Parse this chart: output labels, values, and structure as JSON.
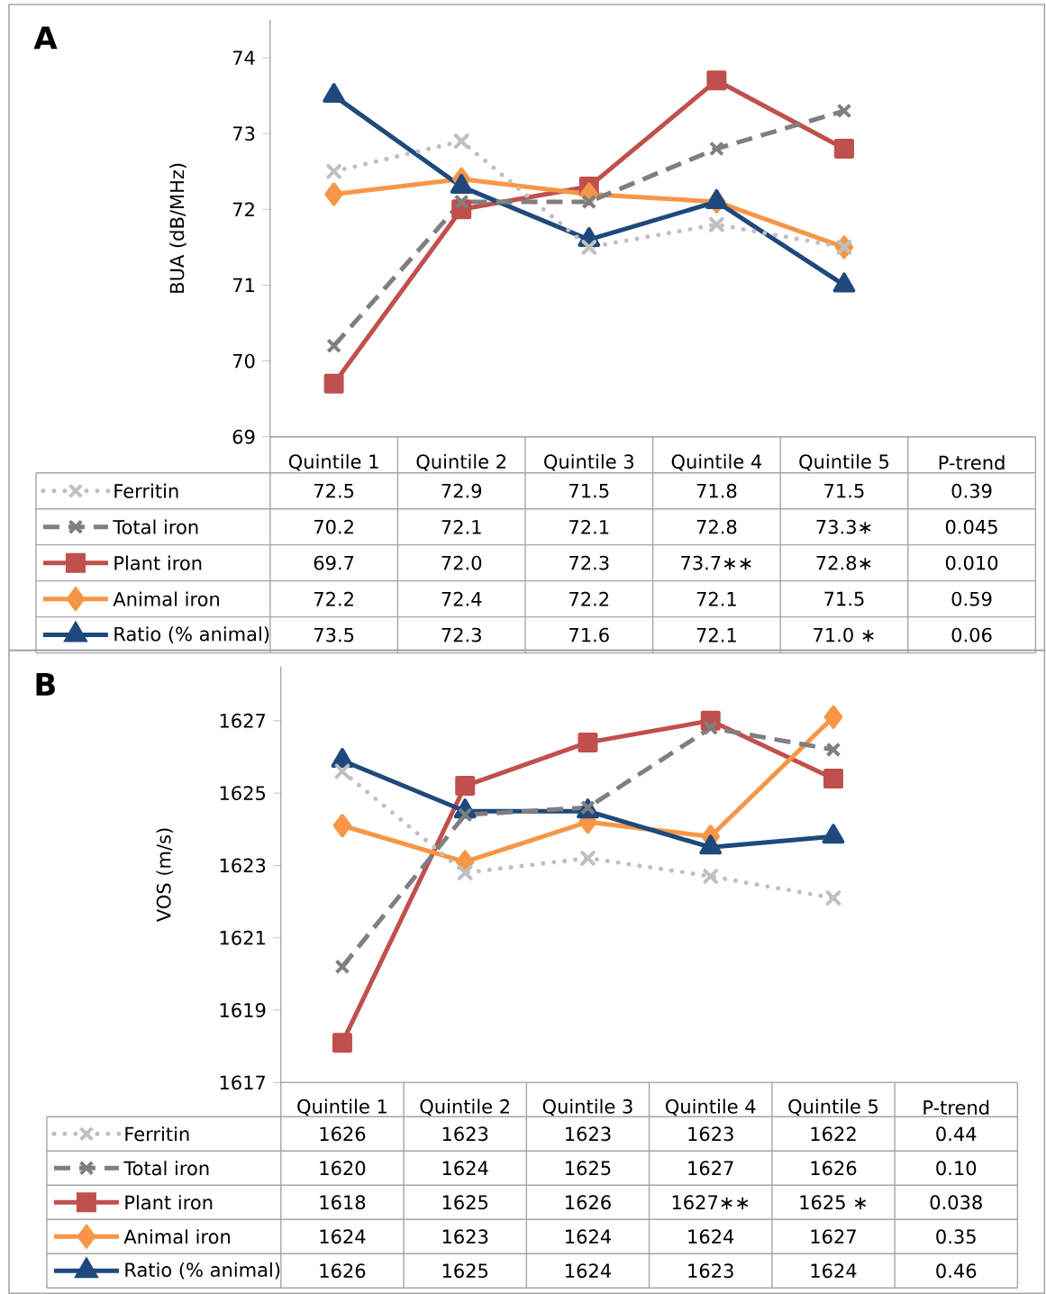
{
  "chart_data": [
    {
      "type": "line",
      "title": "A",
      "ylabel": "BUA (dB/MHz)",
      "categories": [
        "Quintile 1",
        "Quintile 2",
        "Quintile 3",
        "Quintile 4",
        "Quintile 5",
        "P-trend"
      ],
      "ylim": [
        69,
        74.5
      ],
      "yticks": [
        69,
        70,
        71,
        72,
        73,
        74
      ],
      "legend": "bottom",
      "series": [
        {
          "name": "Ferritin",
          "color": "#c0c0c0",
          "marker": "cross",
          "line_style": "dotted",
          "values": [
            72.5,
            72.9,
            71.5,
            71.8,
            71.5,
            null
          ],
          "value_labels": [
            "72.5",
            "72.9",
            "71.5",
            "71.8",
            "71.5",
            "0.39"
          ]
        },
        {
          "name": "Total iron",
          "color": "#7f7f7f",
          "marker": "cross",
          "line_style": "dashed",
          "values": [
            70.2,
            72.1,
            72.1,
            72.8,
            73.3,
            null
          ],
          "value_labels": [
            "70.2",
            "72.1",
            "72.1",
            "72.8",
            "73.3∗",
            "0.045"
          ]
        },
        {
          "name": "Plant iron",
          "color": "#c0504d",
          "marker": "square",
          "line_style": "solid",
          "values": [
            69.7,
            72.0,
            72.3,
            73.7,
            72.8,
            null
          ],
          "value_labels": [
            "69.7",
            "72.0",
            "72.3",
            "73.7∗∗",
            "72.8∗",
            "0.010"
          ]
        },
        {
          "name": "Animal iron",
          "color": "#f79646",
          "marker": "diamond",
          "line_style": "solid",
          "values": [
            72.2,
            72.4,
            72.2,
            72.1,
            71.5,
            null
          ],
          "value_labels": [
            "72.2",
            "72.4",
            "72.2",
            "72.1",
            "71.5",
            "0.59"
          ]
        },
        {
          "name": "Ratio (% animal)",
          "color": "#1f497d",
          "marker": "triangle",
          "line_style": "solid",
          "values": [
            73.5,
            72.3,
            71.6,
            72.1,
            71.0,
            null
          ],
          "value_labels": [
            "73.5",
            "72.3",
            "71.6",
            "72.1",
            "71.0 ∗",
            "0.06"
          ]
        }
      ]
    },
    {
      "type": "line",
      "title": "B",
      "ylabel": "VOS (m/s)",
      "categories": [
        "Quintile 1",
        "Quintile 2",
        "Quintile 3",
        "Quintile 4",
        "Quintile 5",
        "P-trend"
      ],
      "ylim": [
        1617,
        1628.5
      ],
      "yticks": [
        1617,
        1619,
        1621,
        1623,
        1625,
        1627
      ],
      "legend": "bottom",
      "series": [
        {
          "name": "Ferritin",
          "color": "#c0c0c0",
          "marker": "cross",
          "line_style": "dotted",
          "values": [
            1625.6,
            1622.8,
            1623.2,
            1622.7,
            1622.1,
            null
          ],
          "value_labels": [
            "1626",
            "1623",
            "1623",
            "1623",
            "1622",
            "0.44"
          ]
        },
        {
          "name": "Total iron",
          "color": "#7f7f7f",
          "marker": "cross",
          "line_style": "dashed",
          "values": [
            1620.2,
            1624.4,
            1624.6,
            1626.8,
            1626.2,
            null
          ],
          "value_labels": [
            "1620",
            "1624",
            "1625",
            "1627",
            "1626",
            "0.10"
          ]
        },
        {
          "name": "Plant iron",
          "color": "#c0504d",
          "marker": "square",
          "line_style": "solid",
          "values": [
            1618.1,
            1625.2,
            1626.4,
            1627.0,
            1625.4,
            null
          ],
          "value_labels": [
            "1618",
            "1625",
            "1626",
            "1627∗∗",
            "1625 ∗",
            "0.038"
          ]
        },
        {
          "name": "Animal iron",
          "color": "#f79646",
          "marker": "diamond",
          "line_style": "solid",
          "values": [
            1624.1,
            1623.1,
            1624.2,
            1623.8,
            1627.1,
            null
          ],
          "value_labels": [
            "1624",
            "1623",
            "1624",
            "1624",
            "1627",
            "0.35"
          ]
        },
        {
          "name": "Ratio (% animal)",
          "color": "#1f497d",
          "marker": "triangle",
          "line_style": "solid",
          "values": [
            1625.9,
            1624.5,
            1624.5,
            1623.5,
            1623.8,
            null
          ],
          "value_labels": [
            "1626",
            "1625",
            "1624",
            "1623",
            "1624",
            "0.46"
          ]
        }
      ]
    }
  ]
}
